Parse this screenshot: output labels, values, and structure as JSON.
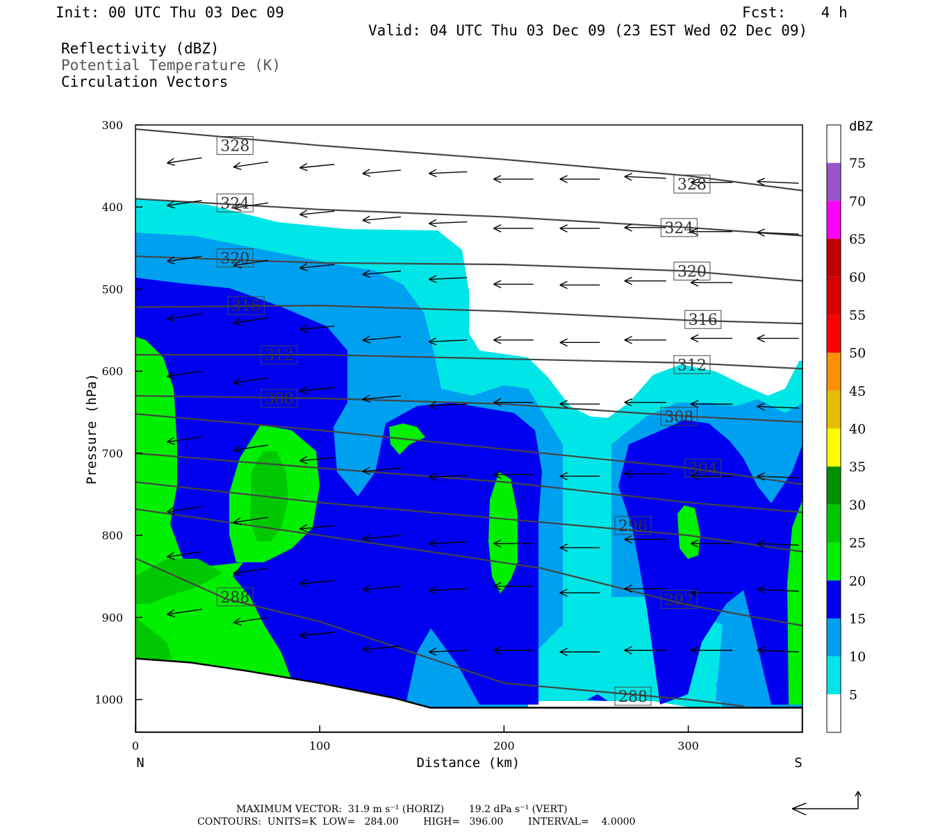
{
  "header": {
    "init": "Init: 00 UTC Thu 03 Dec 09",
    "fcst": "Fcst:    4 h",
    "valid": "Valid: 04 UTC Thu 03 Dec 09 (23 EST Wed 02 Dec 09)",
    "fields": [
      "Reflectivity (dBZ)",
      "Potential Temperature (K)",
      "Circulation Vectors"
    ]
  },
  "footer": {
    "line1": "MAXIMUM VECTOR:  31.9 m s⁻¹ (HORIZ)        19.2 dPa s⁻¹ (VERT)",
    "line2": "CONTOURS:  UNITS=K  LOW=   284.00        HIGH=   396.00        INTERVAL=    4.0000"
  },
  "chart_data": {
    "type": "heatmap",
    "xlabel": "Distance (km)",
    "ylabel": "Pressure (hPa)",
    "xlim": [
      0,
      362
    ],
    "ylim": [
      300,
      1040
    ],
    "x_ticks": [
      0,
      100,
      200,
      300
    ],
    "y_ticks": [
      300,
      400,
      500,
      600,
      700,
      800,
      900,
      1000
    ],
    "x_end_labels": {
      "left": "N",
      "right": "S"
    },
    "colorbar": {
      "title": "dBZ",
      "labels": [
        "5",
        "10",
        "15",
        "20",
        "25",
        "30",
        "35",
        "40",
        "45",
        "50",
        "55",
        "60",
        "65",
        "70",
        "75"
      ],
      "colors": [
        "#ffffff",
        "#00e6e6",
        "#00a0f0",
        "#0000f0",
        "#00f000",
        "#00c800",
        "#009000",
        "#ffff00",
        "#e6be00",
        "#ff9000",
        "#ff0000",
        "#d60000",
        "#c00000",
        "#ff00ff",
        "#9955c9"
      ]
    },
    "theta_contours": [
      {
        "label": "328",
        "points": [
          [
            0,
            305
          ],
          [
            100,
            325
          ],
          [
            200,
            342
          ],
          [
            300,
            362
          ],
          [
            362,
            380
          ]
        ],
        "labels_at": [
          [
            54,
            325
          ],
          [
            302,
            372
          ]
        ]
      },
      {
        "label": "324",
        "points": [
          [
            0,
            390
          ],
          [
            100,
            403
          ],
          [
            200,
            412
          ],
          [
            300,
            425
          ],
          [
            362,
            435
          ]
        ],
        "labels_at": [
          [
            54,
            395
          ],
          [
            295,
            425
          ]
        ]
      },
      {
        "label": "320",
        "points": [
          [
            0,
            460
          ],
          [
            100,
            468
          ],
          [
            200,
            470
          ],
          [
            300,
            478
          ],
          [
            362,
            490
          ]
        ],
        "labels_at": [
          [
            54,
            462
          ],
          [
            302,
            478
          ]
        ]
      },
      {
        "label": "316",
        "points": [
          [
            0,
            522
          ],
          [
            100,
            520
          ],
          [
            200,
            527
          ],
          [
            300,
            538
          ],
          [
            362,
            542
          ]
        ],
        "labels_at": [
          [
            60,
            520
          ],
          [
            308,
            537
          ]
        ]
      },
      {
        "label": "312",
        "points": [
          [
            0,
            580
          ],
          [
            100,
            580
          ],
          [
            200,
            585
          ],
          [
            300,
            590
          ],
          [
            362,
            597
          ]
        ],
        "labels_at": [
          [
            78,
            580
          ],
          [
            302,
            592
          ]
        ]
      },
      {
        "label": "308",
        "points": [
          [
            0,
            630
          ],
          [
            100,
            633
          ],
          [
            200,
            640
          ],
          [
            300,
            655
          ],
          [
            362,
            662
          ]
        ],
        "labels_at": [
          [
            78,
            633
          ],
          [
            295,
            655
          ]
        ]
      },
      {
        "label": "304",
        "points": [
          [
            0,
            652
          ],
          [
            100,
            672
          ],
          [
            200,
            695
          ],
          [
            300,
            718
          ],
          [
            362,
            738
          ]
        ],
        "labels_at": [
          [
            308,
            718
          ]
        ]
      },
      {
        "label": "300",
        "points": [
          [
            0,
            700
          ],
          [
            100,
            718
          ],
          [
            200,
            735
          ],
          [
            300,
            760
          ],
          [
            362,
            772
          ]
        ],
        "labels_at": []
      },
      {
        "label": "296",
        "points": [
          [
            0,
            735
          ],
          [
            100,
            760
          ],
          [
            200,
            780
          ],
          [
            300,
            800
          ],
          [
            362,
            820
          ]
        ],
        "labels_at": [
          [
            270,
            788
          ]
        ]
      },
      {
        "label": "292",
        "points": [
          [
            0,
            768
          ],
          [
            100,
            800
          ],
          [
            220,
            840
          ],
          [
            300,
            885
          ],
          [
            362,
            910
          ]
        ],
        "labels_at": [
          [
            295,
            878
          ]
        ]
      },
      {
        "label": "288",
        "points": [
          [
            0,
            828
          ],
          [
            50,
            878
          ],
          [
            100,
            905
          ],
          [
            200,
            980
          ],
          [
            300,
            1000
          ],
          [
            330,
            1008
          ]
        ],
        "labels_at": [
          [
            54,
            875
          ],
          [
            270,
            996
          ]
        ]
      }
    ],
    "terrain_pressure": [
      [
        0,
        950
      ],
      [
        30,
        955
      ],
      [
        60,
        965
      ],
      [
        100,
        980
      ],
      [
        140,
        998
      ],
      [
        160,
        1010
      ],
      [
        200,
        1010
      ],
      [
        362,
        1010
      ]
    ],
    "vectors": [
      {
        "x": 36,
        "p": 340,
        "u": -20,
        "v": -3
      },
      {
        "x": 72,
        "p": 345,
        "u": -20,
        "v": -3
      },
      {
        "x": 108,
        "p": 348,
        "u": -20,
        "v": -2
      },
      {
        "x": 144,
        "p": 355,
        "u": -22,
        "v": -2
      },
      {
        "x": 180,
        "p": 357,
        "u": -22,
        "v": -1
      },
      {
        "x": 216,
        "p": 366,
        "u": -23,
        "v": 0
      },
      {
        "x": 252,
        "p": 366,
        "u": -23,
        "v": 0
      },
      {
        "x": 288,
        "p": 365,
        "u": -24,
        "v": 1
      },
      {
        "x": 324,
        "p": 370,
        "u": -24,
        "v": 0
      },
      {
        "x": 360,
        "p": 371,
        "u": -24,
        "v": 1
      },
      {
        "x": 36,
        "p": 392,
        "u": -20,
        "v": -3
      },
      {
        "x": 72,
        "p": 395,
        "u": -20,
        "v": -3
      },
      {
        "x": 108,
        "p": 405,
        "u": -20,
        "v": -2
      },
      {
        "x": 144,
        "p": 412,
        "u": -22,
        "v": -2
      },
      {
        "x": 180,
        "p": 418,
        "u": -22,
        "v": -1
      },
      {
        "x": 216,
        "p": 426,
        "u": -23,
        "v": 0
      },
      {
        "x": 252,
        "p": 426,
        "u": -23,
        "v": 0
      },
      {
        "x": 288,
        "p": 425,
        "u": -24,
        "v": 0
      },
      {
        "x": 324,
        "p": 430,
        "u": -24,
        "v": 0
      },
      {
        "x": 360,
        "p": 433,
        "u": -24,
        "v": 1
      },
      {
        "x": 36,
        "p": 460,
        "u": -20,
        "v": -3
      },
      {
        "x": 72,
        "p": 465,
        "u": -20,
        "v": -3
      },
      {
        "x": 108,
        "p": 470,
        "u": -20,
        "v": -2
      },
      {
        "x": 144,
        "p": 478,
        "u": -22,
        "v": -2
      },
      {
        "x": 180,
        "p": 486,
        "u": -22,
        "v": -1
      },
      {
        "x": 216,
        "p": 494,
        "u": -23,
        "v": 0
      },
      {
        "x": 252,
        "p": 495,
        "u": -23,
        "v": 0
      },
      {
        "x": 288,
        "p": 490,
        "u": -24,
        "v": 0
      },
      {
        "x": 324,
        "p": 492,
        "u": -24,
        "v": 0
      },
      {
        "x": 36,
        "p": 530,
        "u": -20,
        "v": -3
      },
      {
        "x": 72,
        "p": 535,
        "u": -20,
        "v": -3
      },
      {
        "x": 108,
        "p": 545,
        "u": -20,
        "v": -2
      },
      {
        "x": 144,
        "p": 558,
        "u": -22,
        "v": -2
      },
      {
        "x": 180,
        "p": 562,
        "u": -22,
        "v": -1
      },
      {
        "x": 216,
        "p": 562,
        "u": -23,
        "v": 0
      },
      {
        "x": 252,
        "p": 565,
        "u": -23,
        "v": 0
      },
      {
        "x": 288,
        "p": 562,
        "u": -24,
        "v": 0
      },
      {
        "x": 324,
        "p": 560,
        "u": -24,
        "v": 0
      },
      {
        "x": 360,
        "p": 560,
        "u": -24,
        "v": 0
      },
      {
        "x": 36,
        "p": 600,
        "u": -20,
        "v": -3
      },
      {
        "x": 72,
        "p": 608,
        "u": -20,
        "v": -3
      },
      {
        "x": 108,
        "p": 620,
        "u": -20,
        "v": -2
      },
      {
        "x": 144,
        "p": 630,
        "u": -22,
        "v": -2
      },
      {
        "x": 180,
        "p": 640,
        "u": -22,
        "v": -1
      },
      {
        "x": 216,
        "p": 638,
        "u": -23,
        "v": 0
      },
      {
        "x": 252,
        "p": 640,
        "u": -23,
        "v": 0
      },
      {
        "x": 288,
        "p": 638,
        "u": -24,
        "v": 0
      },
      {
        "x": 324,
        "p": 640,
        "u": -24,
        "v": 0
      },
      {
        "x": 360,
        "p": 645,
        "u": -24,
        "v": 1
      },
      {
        "x": 36,
        "p": 680,
        "u": -20,
        "v": -3
      },
      {
        "x": 72,
        "p": 690,
        "u": -20,
        "v": -3
      },
      {
        "x": 108,
        "p": 705,
        "u": -20,
        "v": -2
      },
      {
        "x": 144,
        "p": 718,
        "u": -22,
        "v": -2
      },
      {
        "x": 180,
        "p": 727,
        "u": -22,
        "v": -1
      },
      {
        "x": 216,
        "p": 726,
        "u": -23,
        "v": 0
      },
      {
        "x": 252,
        "p": 728,
        "u": -23,
        "v": 0
      },
      {
        "x": 288,
        "p": 725,
        "u": -24,
        "v": 0
      },
      {
        "x": 324,
        "p": 728,
        "u": -24,
        "v": 0
      },
      {
        "x": 360,
        "p": 730,
        "u": -24,
        "v": 1
      },
      {
        "x": 36,
        "p": 765,
        "u": -20,
        "v": -3
      },
      {
        "x": 72,
        "p": 778,
        "u": -20,
        "v": -3
      },
      {
        "x": 108,
        "p": 788,
        "u": -20,
        "v": -2
      },
      {
        "x": 144,
        "p": 800,
        "u": -22,
        "v": -2
      },
      {
        "x": 180,
        "p": 808,
        "u": -22,
        "v": -1
      },
      {
        "x": 216,
        "p": 810,
        "u": -23,
        "v": 0
      },
      {
        "x": 252,
        "p": 815,
        "u": -23,
        "v": 0
      },
      {
        "x": 288,
        "p": 805,
        "u": -24,
        "v": 0
      },
      {
        "x": 324,
        "p": 810,
        "u": -24,
        "v": 0
      },
      {
        "x": 360,
        "p": 812,
        "u": -24,
        "v": 1
      },
      {
        "x": 36,
        "p": 820,
        "u": -20,
        "v": -3
      },
      {
        "x": 72,
        "p": 840,
        "u": -20,
        "v": -3
      },
      {
        "x": 108,
        "p": 855,
        "u": -20,
        "v": -2
      },
      {
        "x": 144,
        "p": 862,
        "u": -22,
        "v": -2
      },
      {
        "x": 180,
        "p": 865,
        "u": -22,
        "v": -1
      },
      {
        "x": 216,
        "p": 862,
        "u": -23,
        "v": 0
      },
      {
        "x": 252,
        "p": 870,
        "u": -23,
        "v": 0
      },
      {
        "x": 288,
        "p": 865,
        "u": -24,
        "v": 0
      },
      {
        "x": 324,
        "p": 870,
        "u": -24,
        "v": 0
      },
      {
        "x": 360,
        "p": 868,
        "u": -24,
        "v": 1
      },
      {
        "x": 36,
        "p": 890,
        "u": -20,
        "v": -3
      },
      {
        "x": 72,
        "p": 900,
        "u": -20,
        "v": -3
      },
      {
        "x": 108,
        "p": 918,
        "u": -20,
        "v": -2
      },
      {
        "x": 144,
        "p": 935,
        "u": -22,
        "v": -2
      },
      {
        "x": 180,
        "p": 940,
        "u": -22,
        "v": -1
      },
      {
        "x": 216,
        "p": 940,
        "u": -23,
        "v": 0
      },
      {
        "x": 252,
        "p": 942,
        "u": -23,
        "v": 0
      },
      {
        "x": 288,
        "p": 940,
        "u": -24,
        "v": 0
      },
      {
        "x": 324,
        "p": 940,
        "u": -24,
        "v": 0
      },
      {
        "x": 360,
        "p": 942,
        "u": -24,
        "v": 1
      }
    ]
  }
}
